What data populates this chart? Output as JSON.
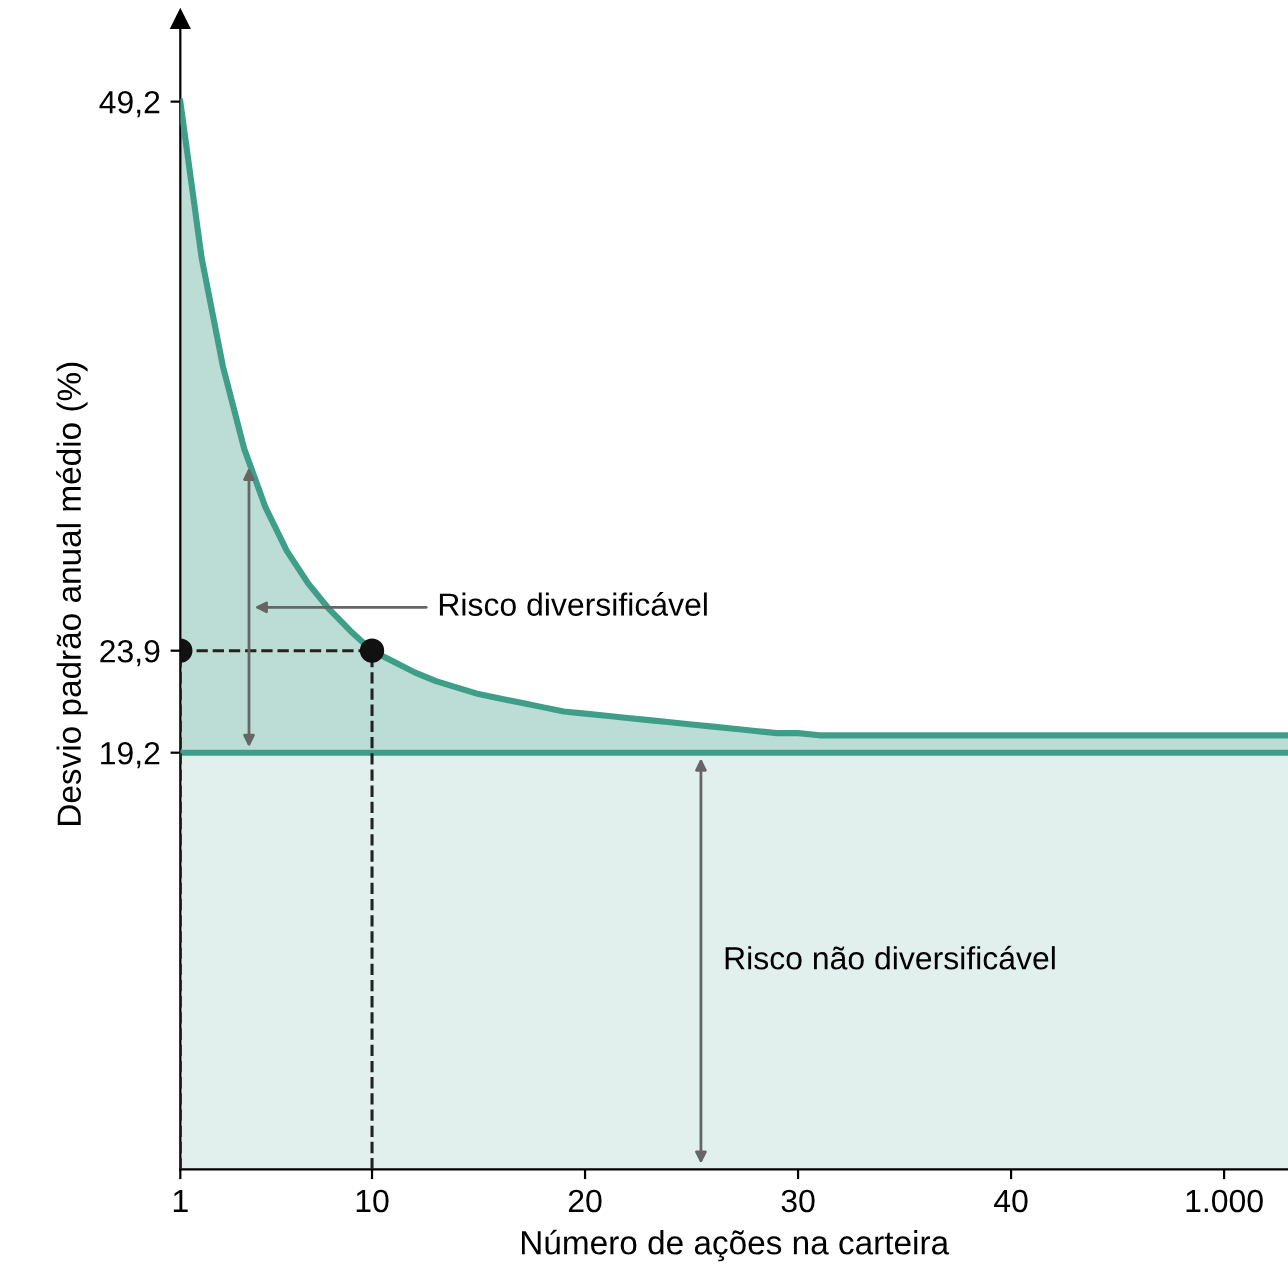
{
  "chart_data": {
    "type": "area",
    "xlabel": "Número de ações na carteira",
    "ylabel": "Desvio padrão anual médio (%)",
    "categories": [
      "1",
      null,
      null,
      null,
      null,
      null,
      null,
      null,
      null,
      "10",
      null,
      null,
      null,
      null,
      null,
      null,
      null,
      null,
      null,
      "20",
      null,
      null,
      null,
      null,
      null,
      null,
      null,
      null,
      null,
      "30",
      null,
      null,
      null,
      null,
      null,
      null,
      null,
      null,
      null,
      "40",
      null,
      null,
      null,
      null,
      null,
      null,
      null,
      null,
      null,
      "1.000",
      null,
      null,
      null
    ],
    "series": [
      {
        "color": "#3f9e88",
        "values": [
          49.2,
          42.0,
          37.0,
          33.2,
          30.5,
          28.5,
          27.0,
          25.8,
          24.8,
          23.9,
          23.4,
          22.9,
          22.5,
          22.2,
          21.9,
          21.7,
          21.5,
          21.3,
          21.1,
          21.0,
          20.9,
          20.8,
          20.7,
          20.6,
          20.5,
          20.4,
          20.3,
          20.2,
          20.1,
          20.1,
          20.0,
          20.0,
          20.0,
          20.0,
          20.0,
          20.0,
          20.0,
          20.0,
          20.0,
          20.0,
          20.0,
          20.0,
          20.0,
          20.0,
          20.0,
          20.0,
          20.0,
          20.0,
          20.0,
          20.0,
          20.0,
          20.0,
          20.0
        ]
      },
      {
        "color": "#3f9e88",
        "values": [
          19.2,
          19.2,
          19.2,
          19.2,
          19.2,
          19.2,
          19.2,
          19.2,
          19.2,
          19.2,
          19.2,
          19.2,
          19.2,
          19.2,
          19.2,
          19.2,
          19.2,
          19.2,
          19.2,
          19.2,
          19.2,
          19.2,
          19.2,
          19.2,
          19.2,
          19.2,
          19.2,
          19.2,
          19.2,
          19.2,
          19.2,
          19.2,
          19.2,
          19.2,
          19.2,
          19.2,
          19.2,
          19.2,
          19.2,
          19.2,
          19.2,
          19.2,
          19.2,
          19.2,
          19.2,
          19.2,
          19.2,
          19.2,
          19.2,
          19.2,
          19.2,
          19.2,
          19.2
        ]
      },
      {
        "type": "scatter",
        "color": "#111111",
        "x": [
          "1",
          "10"
        ],
        "values": [
          23.9,
          23.9
        ]
      }
    ],
    "annotations": [
      "Risco diversificável",
      "Risco não diversificável"
    ],
    "ylim": [
      0,
      53
    ],
    "yticks": [
      {
        "value": 19.2,
        "label": "19,2"
      },
      {
        "value": 23.9,
        "label": "23,9"
      },
      {
        "value": 49.2,
        "label": "49,2"
      }
    ],
    "grid": false
  }
}
